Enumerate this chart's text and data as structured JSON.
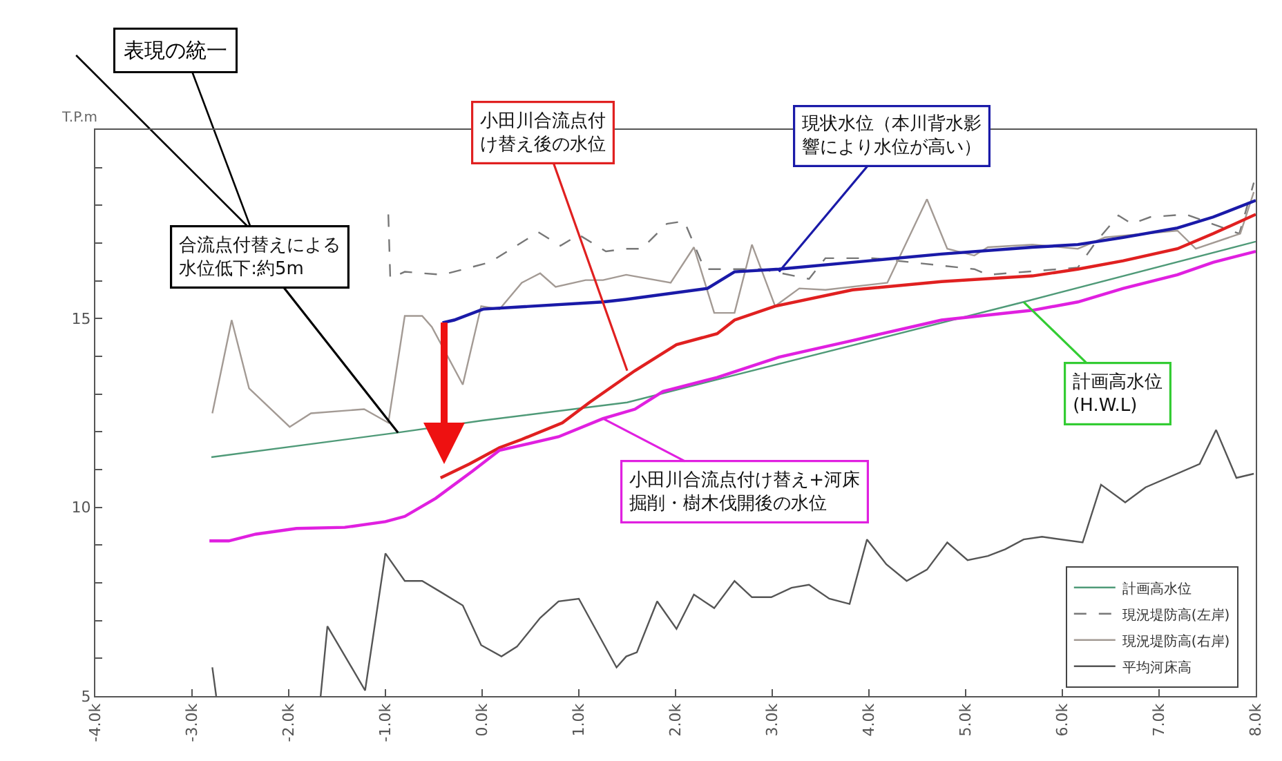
{
  "chart_data": {
    "type": "line",
    "ylabel": "T.P.m",
    "xlim": [
      -4,
      8
    ],
    "xticks": [
      {
        "value": -4,
        "label": "-4.0k"
      },
      {
        "value": -3,
        "label": "-3.0k"
      },
      {
        "value": -2,
        "label": "-2.0k"
      },
      {
        "value": -1,
        "label": "-1.0k"
      },
      {
        "value": 0,
        "label": "0.0k"
      },
      {
        "value": 1,
        "label": "1.0k"
      },
      {
        "value": 2,
        "label": "2.0k"
      },
      {
        "value": 3,
        "label": "3.0k"
      },
      {
        "value": 4,
        "label": "4.0k"
      },
      {
        "value": 5,
        "label": "5.0k"
      },
      {
        "value": 6,
        "label": "6.0k"
      },
      {
        "value": 7,
        "label": "7.0k"
      },
      {
        "value": 8,
        "label": "8.0k"
      }
    ],
    "ylim": [
      5,
      20
    ],
    "yticks": [
      5,
      {
        "value": 6,
        "label": null
      },
      {
        "value": 7,
        "label": null
      },
      {
        "value": 8,
        "label": null
      },
      {
        "value": 9,
        "label": null
      },
      10,
      {
        "value": 11,
        "label": null
      },
      {
        "value": 12,
        "label": null
      },
      {
        "value": 13,
        "label": null
      },
      {
        "value": 14,
        "label": null
      },
      15,
      {
        "value": 16,
        "label": null
      },
      {
        "value": 17,
        "label": null
      },
      {
        "value": 18,
        "label": null
      },
      {
        "value": 19,
        "label": null
      }
    ],
    "grid": false,
    "legend": "bottom right",
    "marker": "none",
    "series": [
      {
        "name": "計画高水位",
        "color": "#4f9a78",
        "x": [
          -2.8,
          -0.87,
          0.0,
          1.5,
          5.6,
          8.0
        ],
        "values": [
          11.33,
          11.98,
          12.3,
          12.78,
          15.44,
          17.04
        ]
      },
      {
        "name": "現況堤防高(左岸)",
        "color": "#777777",
        "line_style": "dashed",
        "x": [
          -0.97,
          -0.95,
          -0.8,
          -0.41,
          0.08,
          0.58,
          0.81,
          1.0,
          1.28,
          1.49,
          1.65,
          1.91,
          2.09,
          2.3,
          2.89,
          3.38,
          3.55,
          4.04,
          5.09,
          5.23,
          6.16,
          6.35,
          6.58,
          6.72,
          6.91,
          7.28,
          7.83,
          7.98
        ],
        "values": [
          17.76,
          16.07,
          16.24,
          16.16,
          16.49,
          17.29,
          16.93,
          17.22,
          16.78,
          16.85,
          16.85,
          17.51,
          17.58,
          16.31,
          16.31,
          16.05,
          16.6,
          16.6,
          16.31,
          16.16,
          16.35,
          17.04,
          17.73,
          17.51,
          17.69,
          17.76,
          17.25,
          18.6
        ]
      },
      {
        "name": "現況堤防高(右岸)",
        "color": "#a39a94",
        "x": [
          -2.79,
          -2.59,
          -2.41,
          -1.99,
          -1.77,
          -1.22,
          -0.97,
          -0.8,
          -0.62,
          -0.52,
          -0.2,
          -0.01,
          0.18,
          0.41,
          0.6,
          0.76,
          1.07,
          1.25,
          1.49,
          1.95,
          2.19,
          2.4,
          2.61,
          2.79,
          3.03,
          3.28,
          3.55,
          4.19,
          4.6,
          4.81,
          5.09,
          5.23,
          5.69,
          6.16,
          6.44,
          7.19,
          7.38,
          7.84,
          7.98
        ],
        "values": [
          12.49,
          14.96,
          13.15,
          12.13,
          12.49,
          12.6,
          12.24,
          15.07,
          15.07,
          14.78,
          13.25,
          15.33,
          15.25,
          15.95,
          16.2,
          15.84,
          16.02,
          16.02,
          16.16,
          15.95,
          16.89,
          15.15,
          15.15,
          16.96,
          15.33,
          15.8,
          15.76,
          15.95,
          18.16,
          16.85,
          16.67,
          16.89,
          16.96,
          16.85,
          17.15,
          17.33,
          16.85,
          17.25,
          18.35
        ]
      },
      {
        "name": "平均河床高",
        "color": "#555555",
        "x": [
          -2.79,
          -2.75,
          -2.2,
          -1.67,
          -1.6,
          -1.21,
          -1.0,
          -0.8,
          -0.62,
          -0.43,
          -0.2,
          -0.01,
          0.2,
          0.36,
          0.6,
          0.79,
          1.0,
          1.39,
          1.49,
          1.6,
          1.81,
          2.01,
          2.19,
          2.4,
          2.61,
          2.79,
          2.99,
          3.2,
          3.38,
          3.59,
          3.8,
          3.98,
          4.18,
          4.39,
          4.6,
          4.81,
          5.02,
          5.23,
          5.41,
          5.6,
          5.79,
          6.21,
          6.4,
          6.65,
          6.86,
          7.42,
          7.59,
          7.8,
          7.98
        ],
        "values": [
          5.76,
          5.0,
          null,
          5.0,
          6.85,
          5.15,
          8.78,
          8.05,
          8.05,
          7.76,
          7.4,
          6.35,
          6.05,
          6.31,
          7.07,
          7.51,
          7.58,
          5.76,
          6.05,
          6.16,
          7.51,
          6.78,
          7.69,
          7.33,
          8.05,
          7.62,
          7.62,
          7.87,
          7.95,
          7.58,
          7.44,
          9.15,
          8.49,
          8.05,
          8.35,
          9.07,
          8.6,
          8.71,
          8.89,
          9.15,
          9.22,
          9.07,
          10.6,
          10.13,
          10.53,
          11.15,
          12.05,
          10.78,
          10.89
        ]
      },
      {
        "color": "#1a1aa8",
        "x": [
          -0.41,
          -0.29,
          0.01,
          1.25,
          1.49,
          2.33,
          2.61,
          3.07,
          3.83,
          4.75,
          5.69,
          6.16,
          6.63,
          7.19,
          7.56,
          8.0
        ],
        "values": [
          14.89,
          14.96,
          15.25,
          15.44,
          15.51,
          15.8,
          16.24,
          16.31,
          16.49,
          16.71,
          16.89,
          16.96,
          17.15,
          17.4,
          17.69,
          18.13
        ]
      },
      {
        "color": "#e02020",
        "x": [
          -0.43,
          -0.13,
          0.18,
          0.41,
          0.83,
          1.11,
          1.58,
          2.01,
          2.43,
          2.61,
          3.03,
          3.83,
          4.75,
          5.69,
          6.16,
          6.63,
          7.19,
          7.56,
          8.0
        ],
        "values": [
          10.78,
          11.15,
          11.58,
          11.8,
          12.24,
          12.78,
          13.62,
          14.31,
          14.6,
          14.96,
          15.33,
          15.76,
          15.98,
          16.13,
          16.31,
          16.53,
          16.85,
          17.25,
          17.76
        ]
      },
      {
        "color": "#e020e0",
        "x": [
          -2.82,
          -2.62,
          -2.34,
          -1.92,
          -1.42,
          -1.0,
          -0.8,
          -0.48,
          -0.1,
          0.18,
          0.79,
          1.25,
          1.58,
          1.87,
          2.43,
          3.07,
          3.83,
          4.75,
          5.69,
          6.16,
          6.63,
          7.19,
          7.56,
          8.0
        ],
        "values": [
          9.11,
          9.11,
          9.29,
          9.44,
          9.47,
          9.62,
          9.76,
          10.24,
          10.96,
          11.51,
          11.87,
          12.35,
          12.6,
          13.07,
          13.44,
          13.98,
          14.42,
          14.96,
          15.22,
          15.44,
          15.8,
          16.16,
          16.49,
          16.78
        ]
      }
    ],
    "annotations": [
      "表現の統一",
      {
        "text": "合流点付替えによる水位低下:約5m",
        "x": -0.87,
        "y": 11.98
      },
      {
        "text": "小田川合流点付け替え後の水位",
        "x": 1.5,
        "y": 13.62
      },
      {
        "text": "現状水位（本川背水影響により水位が高い）",
        "x": 3.07,
        "y": 16.24
      },
      {
        "text": "計画高水位\n(H.W.L)",
        "x": 5.6,
        "y": 15.44
      },
      {
        "text": "小田川合流点付け替え+河床掘削・樹木伐開後の水位",
        "x": 1.25,
        "y": 12.35
      }
    ]
  }
}
